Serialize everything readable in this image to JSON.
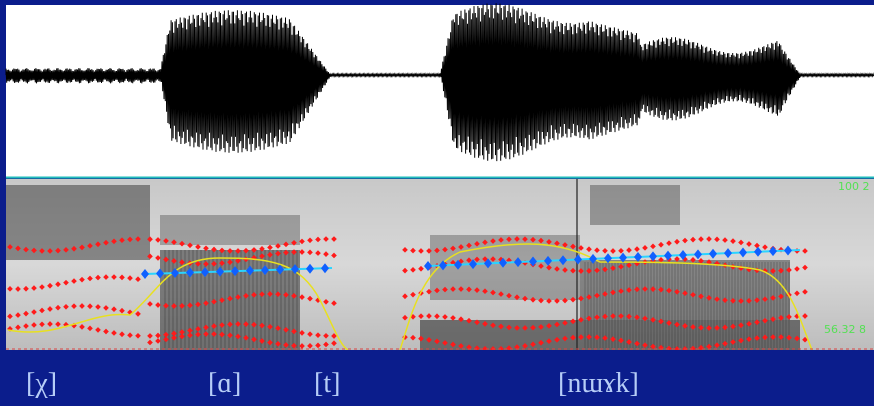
{
  "labels": [
    "[χ]",
    "[ɑ]",
    "[t]",
    "[nɯɤk]"
  ],
  "scale_labels": {
    "top": "100 2",
    "bottom": "56.32 8"
  }
}
